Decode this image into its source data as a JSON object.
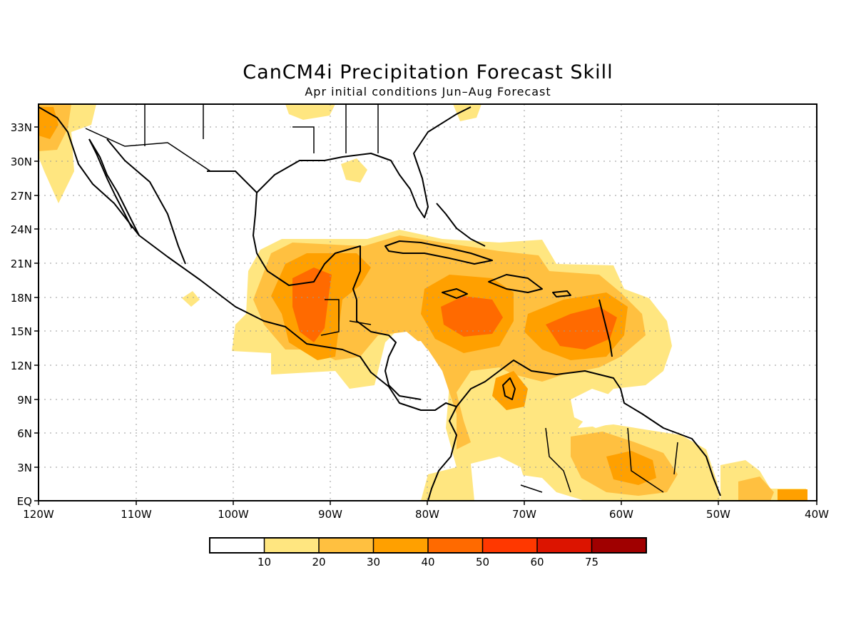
{
  "title": "CanCM4i Precipitation Forecast Skill",
  "subtitle": "Apr initial conditions   Jun–Aug Forecast",
  "map": {
    "lon_range": [
      -120,
      -40
    ],
    "lat_range": [
      0,
      35
    ],
    "lon_ticks": [
      "120W",
      "110W",
      "100W",
      "90W",
      "80W",
      "70W",
      "60W",
      "50W",
      "40W"
    ],
    "lat_ticks": [
      "EQ",
      "3N",
      "6N",
      "9N",
      "12N",
      "15N",
      "18N",
      "21N",
      "24N",
      "27N",
      "30N",
      "33N"
    ],
    "grid": "dotted"
  },
  "colorbar": {
    "labels": [
      "10",
      "20",
      "30",
      "40",
      "50",
      "60",
      "75"
    ],
    "colors": [
      "#ffffff",
      "#ffe680",
      "#ffc040",
      "#ffa000",
      "#ff6a00",
      "#ff3800",
      "#dc1400",
      "#a00000"
    ]
  }
}
